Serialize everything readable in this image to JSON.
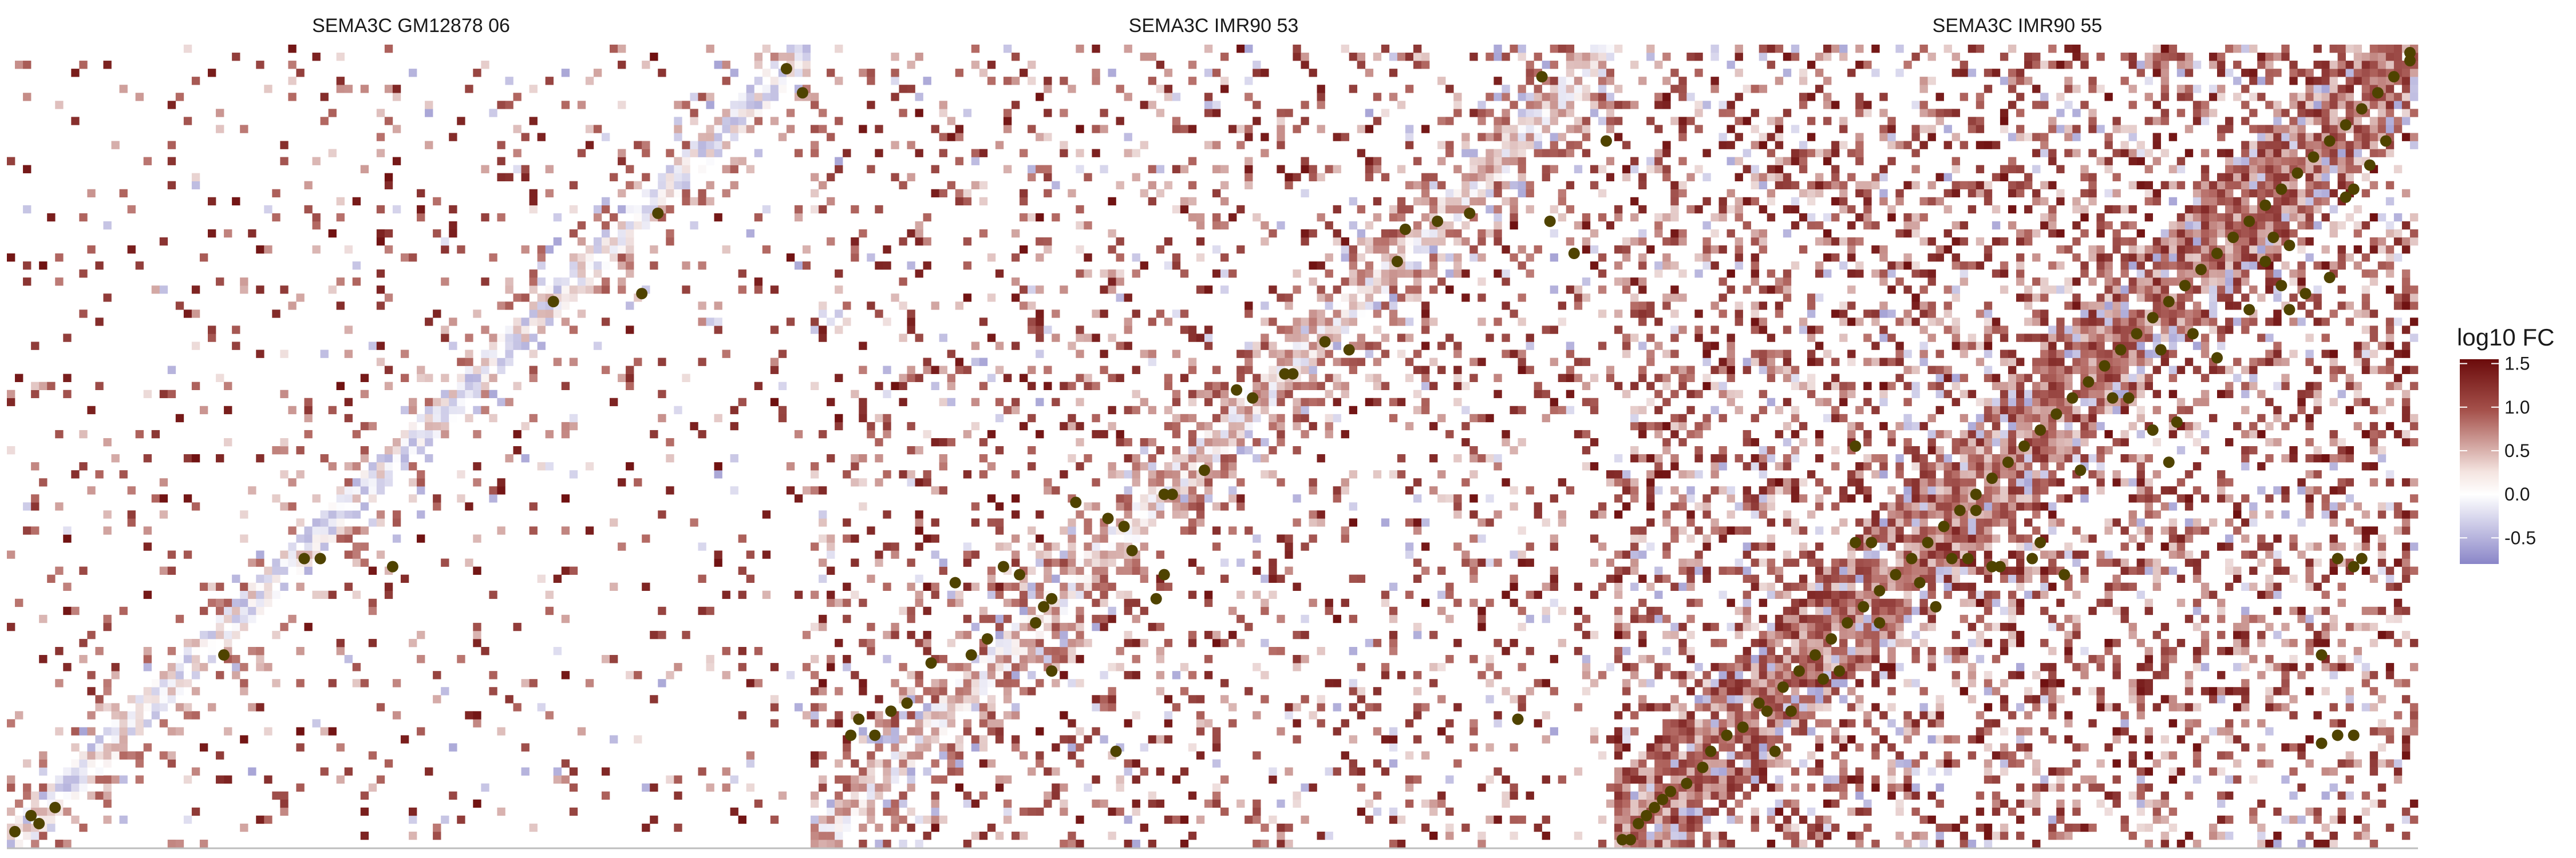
{
  "figure": {
    "legend": {
      "title": "log10 FC",
      "ticks": [
        "1.5",
        "1.0",
        "0.5",
        "0.0",
        "-0.5"
      ],
      "colors": [
        "#6b0b0b",
        "#9b3a37",
        "#ffffff",
        "#8a86c8"
      ]
    },
    "point_color": "#4f4300"
  },
  "chart_data": [
    {
      "type": "heatmap",
      "title": "SEMA3C GM12878 06",
      "bin_range": [
        0,
        100
      ],
      "color_scale": {
        "name": "log10 FC",
        "range": [
          -0.8,
          1.55
        ]
      },
      "background_density": 0.1,
      "diagonal_value": 0.05,
      "points": [
        [
          1,
          2
        ],
        [
          3,
          4
        ],
        [
          4,
          3
        ],
        [
          6,
          5
        ],
        [
          27,
          24
        ],
        [
          37,
          36
        ],
        [
          39,
          36
        ],
        [
          48,
          35
        ],
        [
          68,
          68
        ],
        [
          79,
          69
        ],
        [
          81,
          79
        ],
        [
          97,
          97
        ],
        [
          99,
          94
        ]
      ]
    },
    {
      "type": "heatmap",
      "title": "SEMA3C IMR90 53",
      "bin_range": [
        0,
        100
      ],
      "color_scale": {
        "name": "log10 FC",
        "range": [
          -0.8,
          1.55
        ]
      },
      "background_density": 0.22,
      "diagonal_value": 0.3,
      "points": [
        [
          5,
          14
        ],
        [
          6,
          16
        ],
        [
          8,
          14
        ],
        [
          10,
          17
        ],
        [
          12,
          18
        ],
        [
          15,
          23
        ],
        [
          18,
          33
        ],
        [
          20,
          24
        ],
        [
          22,
          26
        ],
        [
          24,
          35
        ],
        [
          26,
          34
        ],
        [
          28,
          28
        ],
        [
          29,
          30
        ],
        [
          30,
          31
        ],
        [
          30,
          22
        ],
        [
          33,
          43
        ],
        [
          37,
          41
        ],
        [
          38,
          12
        ],
        [
          39,
          40
        ],
        [
          40,
          37
        ],
        [
          43,
          31
        ],
        [
          44,
          34
        ],
        [
          45,
          44
        ],
        [
          44,
          44
        ],
        [
          49,
          47
        ],
        [
          53,
          57
        ],
        [
          55,
          56
        ],
        [
          59,
          59
        ],
        [
          60,
          59
        ],
        [
          64,
          63
        ],
        [
          67,
          62
        ],
        [
          73,
          73
        ],
        [
          74,
          77
        ],
        [
          78,
          78
        ],
        [
          82,
          79
        ],
        [
          88,
          16
        ],
        [
          91,
          96
        ],
        [
          92,
          78
        ],
        [
          95,
          74
        ],
        [
          99,
          88
        ]
      ]
    },
    {
      "type": "heatmap",
      "title": "SEMA3C IMR90 55",
      "bin_range": [
        0,
        100
      ],
      "color_scale": {
        "name": "log10 FC",
        "range": [
          -0.8,
          1.55
        ]
      },
      "background_density": 0.42,
      "diagonal_value": 0.8,
      "points": [
        [
          1,
          1
        ],
        [
          2,
          1
        ],
        [
          3,
          3
        ],
        [
          4,
          4
        ],
        [
          5,
          5
        ],
        [
          6,
          6
        ],
        [
          7,
          7
        ],
        [
          9,
          8
        ],
        [
          11,
          10
        ],
        [
          12,
          12
        ],
        [
          14,
          14
        ],
        [
          16,
          15
        ],
        [
          18,
          18
        ],
        [
          19,
          17
        ],
        [
          21,
          20
        ],
        [
          23,
          22
        ],
        [
          25,
          24
        ],
        [
          27,
          26
        ],
        [
          29,
          28
        ],
        [
          31,
          30
        ],
        [
          33,
          32
        ],
        [
          35,
          34
        ],
        [
          37,
          36
        ],
        [
          39,
          38
        ],
        [
          41,
          40
        ],
        [
          43,
          42
        ],
        [
          45,
          44
        ],
        [
          47,
          46
        ],
        [
          49,
          48
        ],
        [
          51,
          50
        ],
        [
          53,
          52
        ],
        [
          55,
          54
        ],
        [
          57,
          56
        ],
        [
          59,
          58
        ],
        [
          61,
          60
        ],
        [
          63,
          62
        ],
        [
          65,
          64
        ],
        [
          67,
          66
        ],
        [
          69,
          68
        ],
        [
          71,
          70
        ],
        [
          73,
          72
        ],
        [
          75,
          74
        ],
        [
          77,
          76
        ],
        [
          79,
          78
        ],
        [
          81,
          80
        ],
        [
          83,
          82
        ],
        [
          85,
          84
        ],
        [
          87,
          86
        ],
        [
          89,
          88
        ],
        [
          91,
          90
        ],
        [
          93,
          92
        ],
        [
          95,
          94
        ],
        [
          97,
          96
        ],
        [
          99,
          98
        ],
        [
          20,
          12
        ],
        [
          22,
          17
        ],
        [
          26,
          21
        ],
        [
          28,
          22
        ],
        [
          33,
          28
        ],
        [
          38,
          33
        ],
        [
          42,
          36
        ],
        [
          45,
          42
        ],
        [
          48,
          35
        ],
        [
          52,
          36
        ],
        [
          53,
          38
        ],
        [
          56,
          34
        ],
        [
          58,
          47
        ],
        [
          62,
          56
        ],
        [
          64,
          56
        ],
        [
          67,
          52
        ],
        [
          68,
          62
        ],
        [
          69,
          48
        ],
        [
          70,
          53
        ],
        [
          72,
          64
        ],
        [
          75,
          61
        ],
        [
          79,
          67
        ],
        [
          81,
          73
        ],
        [
          82,
          76
        ],
        [
          83,
          70
        ],
        [
          84,
          75
        ],
        [
          84,
          67
        ],
        [
          86,
          69
        ],
        [
          89,
          71
        ],
        [
          91,
          81
        ],
        [
          92,
          82
        ],
        [
          94,
          85
        ],
        [
          96,
          88
        ],
        [
          99,
          99
        ],
        [
          88,
          24
        ],
        [
          92,
          35
        ],
        [
          93,
          36
        ],
        [
          90,
          36
        ],
        [
          88,
          13
        ],
        [
          90,
          14
        ],
        [
          92,
          14
        ],
        [
          30,
          50
        ],
        [
          30,
          38
        ],
        [
          32,
          38
        ],
        [
          40,
          30
        ],
        [
          44,
          36
        ],
        [
          47,
          35
        ]
      ]
    }
  ]
}
